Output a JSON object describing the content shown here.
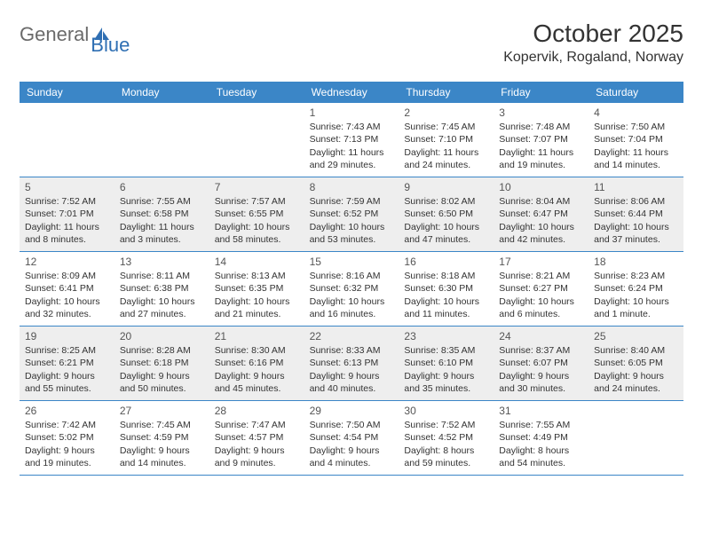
{
  "logo": {
    "text1": "General",
    "text2": "Blue",
    "logo_fill": "#2f6fb3",
    "text1_color": "#6a6a6a"
  },
  "title": "October 2025",
  "location": "Kopervik, Rogaland, Norway",
  "colors": {
    "header_bg": "#3b86c7",
    "header_text": "#ffffff",
    "border": "#3b86c7",
    "shaded_bg": "#eeeeee",
    "text": "#333333",
    "background": "#ffffff"
  },
  "fonts": {
    "title_size": 28,
    "location_size": 16,
    "day_header_size": 12,
    "cell_size": 10.5
  },
  "day_headers": [
    "Sunday",
    "Monday",
    "Tuesday",
    "Wednesday",
    "Thursday",
    "Friday",
    "Saturday"
  ],
  "weeks": [
    {
      "shaded": false,
      "days": [
        null,
        null,
        null,
        {
          "n": "1",
          "sr": "Sunrise: 7:43 AM",
          "ss": "Sunset: 7:13 PM",
          "dl": "Daylight: 11 hours and 29 minutes."
        },
        {
          "n": "2",
          "sr": "Sunrise: 7:45 AM",
          "ss": "Sunset: 7:10 PM",
          "dl": "Daylight: 11 hours and 24 minutes."
        },
        {
          "n": "3",
          "sr": "Sunrise: 7:48 AM",
          "ss": "Sunset: 7:07 PM",
          "dl": "Daylight: 11 hours and 19 minutes."
        },
        {
          "n": "4",
          "sr": "Sunrise: 7:50 AM",
          "ss": "Sunset: 7:04 PM",
          "dl": "Daylight: 11 hours and 14 minutes."
        }
      ]
    },
    {
      "shaded": true,
      "days": [
        {
          "n": "5",
          "sr": "Sunrise: 7:52 AM",
          "ss": "Sunset: 7:01 PM",
          "dl": "Daylight: 11 hours and 8 minutes."
        },
        {
          "n": "6",
          "sr": "Sunrise: 7:55 AM",
          "ss": "Sunset: 6:58 PM",
          "dl": "Daylight: 11 hours and 3 minutes."
        },
        {
          "n": "7",
          "sr": "Sunrise: 7:57 AM",
          "ss": "Sunset: 6:55 PM",
          "dl": "Daylight: 10 hours and 58 minutes."
        },
        {
          "n": "8",
          "sr": "Sunrise: 7:59 AM",
          "ss": "Sunset: 6:52 PM",
          "dl": "Daylight: 10 hours and 53 minutes."
        },
        {
          "n": "9",
          "sr": "Sunrise: 8:02 AM",
          "ss": "Sunset: 6:50 PM",
          "dl": "Daylight: 10 hours and 47 minutes."
        },
        {
          "n": "10",
          "sr": "Sunrise: 8:04 AM",
          "ss": "Sunset: 6:47 PM",
          "dl": "Daylight: 10 hours and 42 minutes."
        },
        {
          "n": "11",
          "sr": "Sunrise: 8:06 AM",
          "ss": "Sunset: 6:44 PM",
          "dl": "Daylight: 10 hours and 37 minutes."
        }
      ]
    },
    {
      "shaded": false,
      "days": [
        {
          "n": "12",
          "sr": "Sunrise: 8:09 AM",
          "ss": "Sunset: 6:41 PM",
          "dl": "Daylight: 10 hours and 32 minutes."
        },
        {
          "n": "13",
          "sr": "Sunrise: 8:11 AM",
          "ss": "Sunset: 6:38 PM",
          "dl": "Daylight: 10 hours and 27 minutes."
        },
        {
          "n": "14",
          "sr": "Sunrise: 8:13 AM",
          "ss": "Sunset: 6:35 PM",
          "dl": "Daylight: 10 hours and 21 minutes."
        },
        {
          "n": "15",
          "sr": "Sunrise: 8:16 AM",
          "ss": "Sunset: 6:32 PM",
          "dl": "Daylight: 10 hours and 16 minutes."
        },
        {
          "n": "16",
          "sr": "Sunrise: 8:18 AM",
          "ss": "Sunset: 6:30 PM",
          "dl": "Daylight: 10 hours and 11 minutes."
        },
        {
          "n": "17",
          "sr": "Sunrise: 8:21 AM",
          "ss": "Sunset: 6:27 PM",
          "dl": "Daylight: 10 hours and 6 minutes."
        },
        {
          "n": "18",
          "sr": "Sunrise: 8:23 AM",
          "ss": "Sunset: 6:24 PM",
          "dl": "Daylight: 10 hours and 1 minute."
        }
      ]
    },
    {
      "shaded": true,
      "days": [
        {
          "n": "19",
          "sr": "Sunrise: 8:25 AM",
          "ss": "Sunset: 6:21 PM",
          "dl": "Daylight: 9 hours and 55 minutes."
        },
        {
          "n": "20",
          "sr": "Sunrise: 8:28 AM",
          "ss": "Sunset: 6:18 PM",
          "dl": "Daylight: 9 hours and 50 minutes."
        },
        {
          "n": "21",
          "sr": "Sunrise: 8:30 AM",
          "ss": "Sunset: 6:16 PM",
          "dl": "Daylight: 9 hours and 45 minutes."
        },
        {
          "n": "22",
          "sr": "Sunrise: 8:33 AM",
          "ss": "Sunset: 6:13 PM",
          "dl": "Daylight: 9 hours and 40 minutes."
        },
        {
          "n": "23",
          "sr": "Sunrise: 8:35 AM",
          "ss": "Sunset: 6:10 PM",
          "dl": "Daylight: 9 hours and 35 minutes."
        },
        {
          "n": "24",
          "sr": "Sunrise: 8:37 AM",
          "ss": "Sunset: 6:07 PM",
          "dl": "Daylight: 9 hours and 30 minutes."
        },
        {
          "n": "25",
          "sr": "Sunrise: 8:40 AM",
          "ss": "Sunset: 6:05 PM",
          "dl": "Daylight: 9 hours and 24 minutes."
        }
      ]
    },
    {
      "shaded": false,
      "days": [
        {
          "n": "26",
          "sr": "Sunrise: 7:42 AM",
          "ss": "Sunset: 5:02 PM",
          "dl": "Daylight: 9 hours and 19 minutes."
        },
        {
          "n": "27",
          "sr": "Sunrise: 7:45 AM",
          "ss": "Sunset: 4:59 PM",
          "dl": "Daylight: 9 hours and 14 minutes."
        },
        {
          "n": "28",
          "sr": "Sunrise: 7:47 AM",
          "ss": "Sunset: 4:57 PM",
          "dl": "Daylight: 9 hours and 9 minutes."
        },
        {
          "n": "29",
          "sr": "Sunrise: 7:50 AM",
          "ss": "Sunset: 4:54 PM",
          "dl": "Daylight: 9 hours and 4 minutes."
        },
        {
          "n": "30",
          "sr": "Sunrise: 7:52 AM",
          "ss": "Sunset: 4:52 PM",
          "dl": "Daylight: 8 hours and 59 minutes."
        },
        {
          "n": "31",
          "sr": "Sunrise: 7:55 AM",
          "ss": "Sunset: 4:49 PM",
          "dl": "Daylight: 8 hours and 54 minutes."
        },
        null
      ]
    }
  ]
}
